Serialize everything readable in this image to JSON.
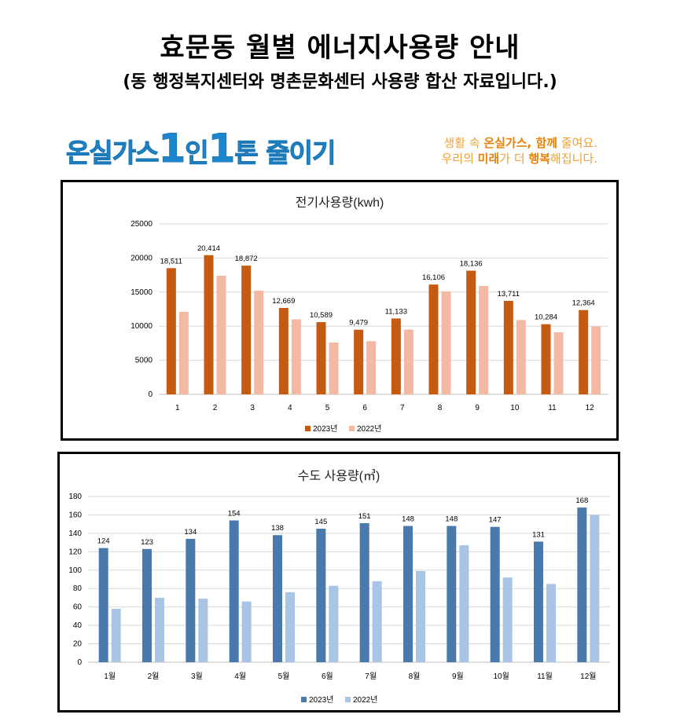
{
  "page": {
    "title": "효문동 월별 에너지사용량 안내",
    "subtitle": "(동 행정복지센터와 명촌문화센터 사용량 합산 자료입니다.)"
  },
  "banner": {
    "slogan_a": "온실가스",
    "slogan_b": "1",
    "slogan_c": "인",
    "slogan_d": "1",
    "slogan_e": "톤 줄이기",
    "tagline_line1_pre": "생활 속 ",
    "tagline_line1_bold": "온실가스, 함께",
    "tagline_line1_post": " 줄여요.",
    "tagline_line2_pre": "우리의 ",
    "tagline_line2_bold": "미래",
    "tagline_line2_mid": "가 더 ",
    "tagline_line2_bold2": "행복",
    "tagline_line2_post": "해집니다."
  },
  "chart_data": [
    {
      "type": "bar",
      "title": "전기사용량(kwh)",
      "categories": [
        "1",
        "2",
        "3",
        "4",
        "5",
        "6",
        "7",
        "8",
        "9",
        "10",
        "11",
        "12"
      ],
      "ylim": [
        0,
        25000
      ],
      "yticks": [
        0,
        5000,
        10000,
        15000,
        20000,
        25000
      ],
      "grid": true,
      "legend_position": "bottom",
      "series": [
        {
          "name": "2023년",
          "color": "#c55a11",
          "values": [
            18511,
            20414,
            18872,
            12669,
            10589,
            9479,
            11133,
            16106,
            18136,
            13711,
            10284,
            12364
          ],
          "labels": [
            "18,511",
            "20,414",
            "18,872",
            "12,669",
            "10,589",
            "9,479",
            "11,133",
            "16,106",
            "18,136",
            "13,711",
            "10,284",
            "12,364"
          ]
        },
        {
          "name": "2022년",
          "color": "#f4b9a3",
          "values": [
            12100,
            17400,
            15200,
            11000,
            7600,
            7800,
            9500,
            15100,
            15900,
            10900,
            9100,
            9950
          ]
        }
      ]
    },
    {
      "type": "bar",
      "title": "수도 사용량(㎥)",
      "categories": [
        "1월",
        "2월",
        "3월",
        "4월",
        "5월",
        "6월",
        "7월",
        "8월",
        "9월",
        "10월",
        "11월",
        "12월"
      ],
      "ylim": [
        0,
        180
      ],
      "yticks": [
        0,
        20,
        40,
        60,
        80,
        100,
        120,
        140,
        160,
        180
      ],
      "grid": true,
      "legend_position": "bottom",
      "series": [
        {
          "name": "2023년",
          "color": "#4a7aab",
          "values": [
            124,
            123,
            134,
            154,
            138,
            145,
            151,
            148,
            148,
            147,
            131,
            168
          ],
          "labels": [
            "124",
            "123",
            "134",
            "154",
            "138",
            "145",
            "151",
            "148",
            "148",
            "147",
            "131",
            "168"
          ]
        },
        {
          "name": "2022년",
          "color": "#a9c5e6",
          "values": [
            58,
            70,
            69,
            66,
            76,
            83,
            88,
            99,
            127,
            92,
            85,
            160
          ]
        }
      ]
    }
  ]
}
